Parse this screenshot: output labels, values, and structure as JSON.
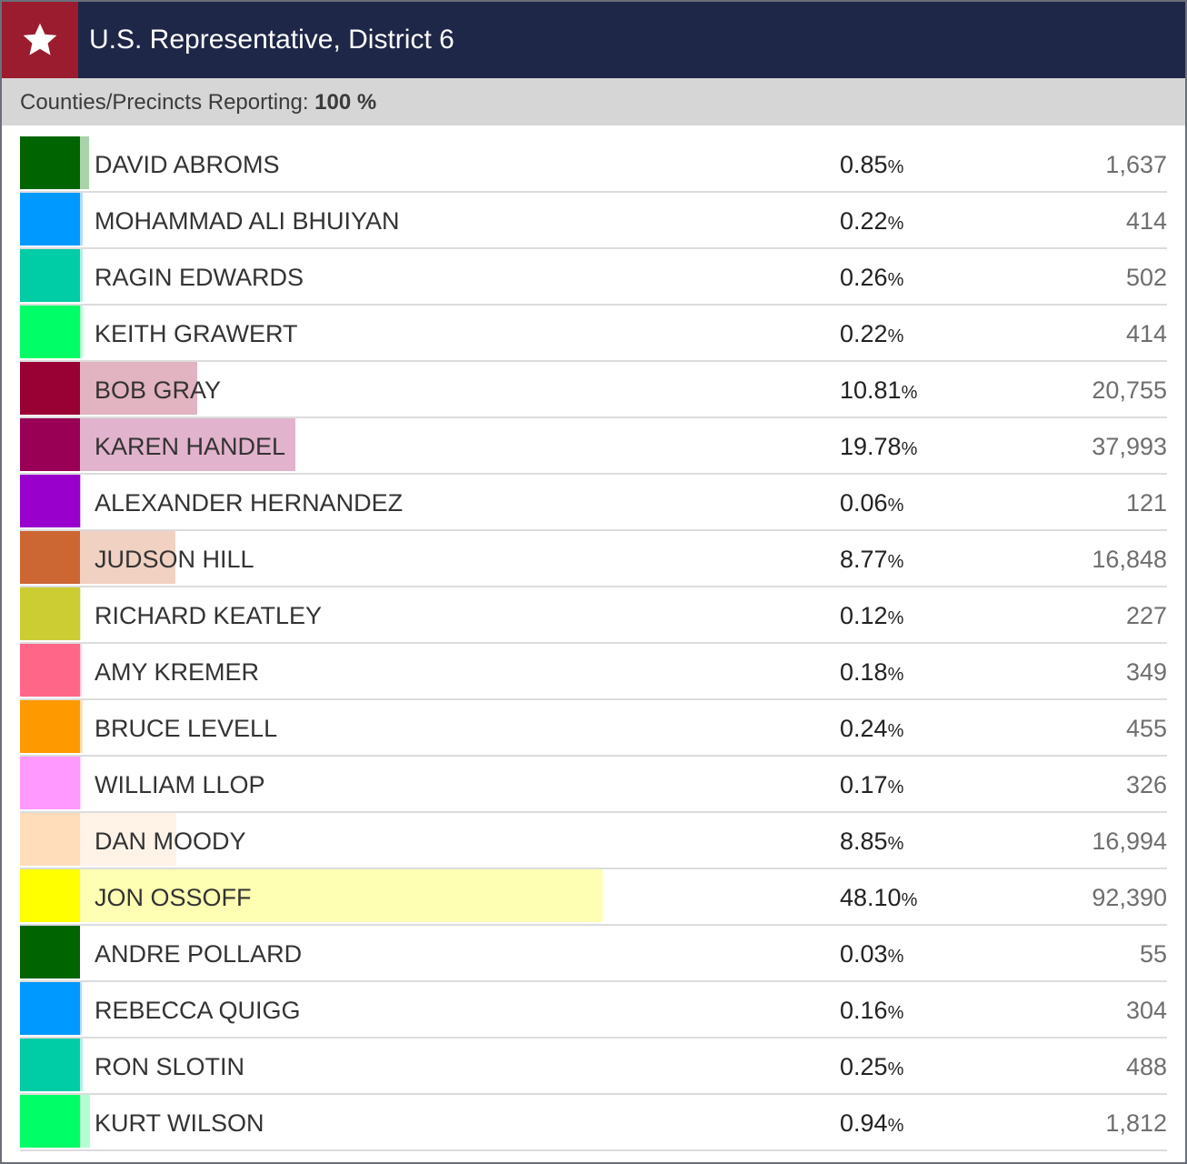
{
  "header": {
    "title": "U.S. Representative, District 6",
    "icon": "star-icon",
    "colors": {
      "bar": "#1f2748",
      "accent": "#9a1c2e"
    }
  },
  "reporting": {
    "label": "Counties/Precincts Reporting:",
    "value": "100 %"
  },
  "percent_symbol": "%",
  "candidates": [
    {
      "name": "DAVID ABROMS",
      "pct": "0.85",
      "share": 0.85,
      "votes": "1,637",
      "color": "#006400",
      "bar_color": "#a9d3a9"
    },
    {
      "name": "MOHAMMAD ALI BHUIYAN",
      "pct": "0.22",
      "share": 0.22,
      "votes": "414",
      "color": "#0099ff",
      "bar_color": "#b3dcff"
    },
    {
      "name": "RAGIN EDWARDS",
      "pct": "0.26",
      "share": 0.26,
      "votes": "502",
      "color": "#00cca5",
      "bar_color": "#b3efe3"
    },
    {
      "name": "KEITH GRAWERT",
      "pct": "0.22",
      "share": 0.22,
      "votes": "414",
      "color": "#00ff66",
      "bar_color": "#b3ffd1"
    },
    {
      "name": "BOB GRAY",
      "pct": "10.81",
      "share": 10.81,
      "votes": "20,755",
      "color": "#990033",
      "bar_color": "#e2b3c1"
    },
    {
      "name": "KAREN HANDEL",
      "pct": "19.78",
      "share": 19.78,
      "votes": "37,993",
      "color": "#990055",
      "bar_color": "#e2b3cc"
    },
    {
      "name": "ALEXANDER HERNANDEZ",
      "pct": "0.06",
      "share": 0.06,
      "votes": "121",
      "color": "#9900cc",
      "bar_color": "#e0b3f0"
    },
    {
      "name": "JUDSON HILL",
      "pct": "8.77",
      "share": 8.77,
      "votes": "16,848",
      "color": "#cc6633",
      "bar_color": "#f0d1c2"
    },
    {
      "name": "RICHARD KEATLEY",
      "pct": "0.12",
      "share": 0.12,
      "votes": "227",
      "color": "#cccc33",
      "bar_color": "#f0f0c2"
    },
    {
      "name": "AMY KREMER",
      "pct": "0.18",
      "share": 0.18,
      "votes": "349",
      "color": "#ff6688",
      "bar_color": "#ffd1db"
    },
    {
      "name": "BRUCE LEVELL",
      "pct": "0.24",
      "share": 0.24,
      "votes": "455",
      "color": "#ff9900",
      "bar_color": "#ffe0b3"
    },
    {
      "name": "WILLIAM LLOP",
      "pct": "0.17",
      "share": 0.17,
      "votes": "326",
      "color": "#ff99ff",
      "bar_color": "#ffe0ff"
    },
    {
      "name": "DAN MOODY",
      "pct": "8.85",
      "share": 8.85,
      "votes": "16,994",
      "color": "#ffddbb",
      "bar_color": "#fff3e8"
    },
    {
      "name": "JON OSSOFF",
      "pct": "48.10",
      "share": 48.1,
      "votes": "92,390",
      "color": "#ffff00",
      "bar_color": "#ffffb3"
    },
    {
      "name": "ANDRE POLLARD",
      "pct": "0.03",
      "share": 0.03,
      "votes": "55",
      "color": "#006400",
      "bar_color": "#a9d3a9"
    },
    {
      "name": "REBECCA QUIGG",
      "pct": "0.16",
      "share": 0.16,
      "votes": "304",
      "color": "#0099ff",
      "bar_color": "#b3dcff"
    },
    {
      "name": "RON SLOTIN",
      "pct": "0.25",
      "share": 0.25,
      "votes": "488",
      "color": "#00cca5",
      "bar_color": "#b3efe3"
    },
    {
      "name": "KURT WILSON",
      "pct": "0.94",
      "share": 0.94,
      "votes": "1,812",
      "color": "#00ff66",
      "bar_color": "#b3ffd1"
    }
  ]
}
